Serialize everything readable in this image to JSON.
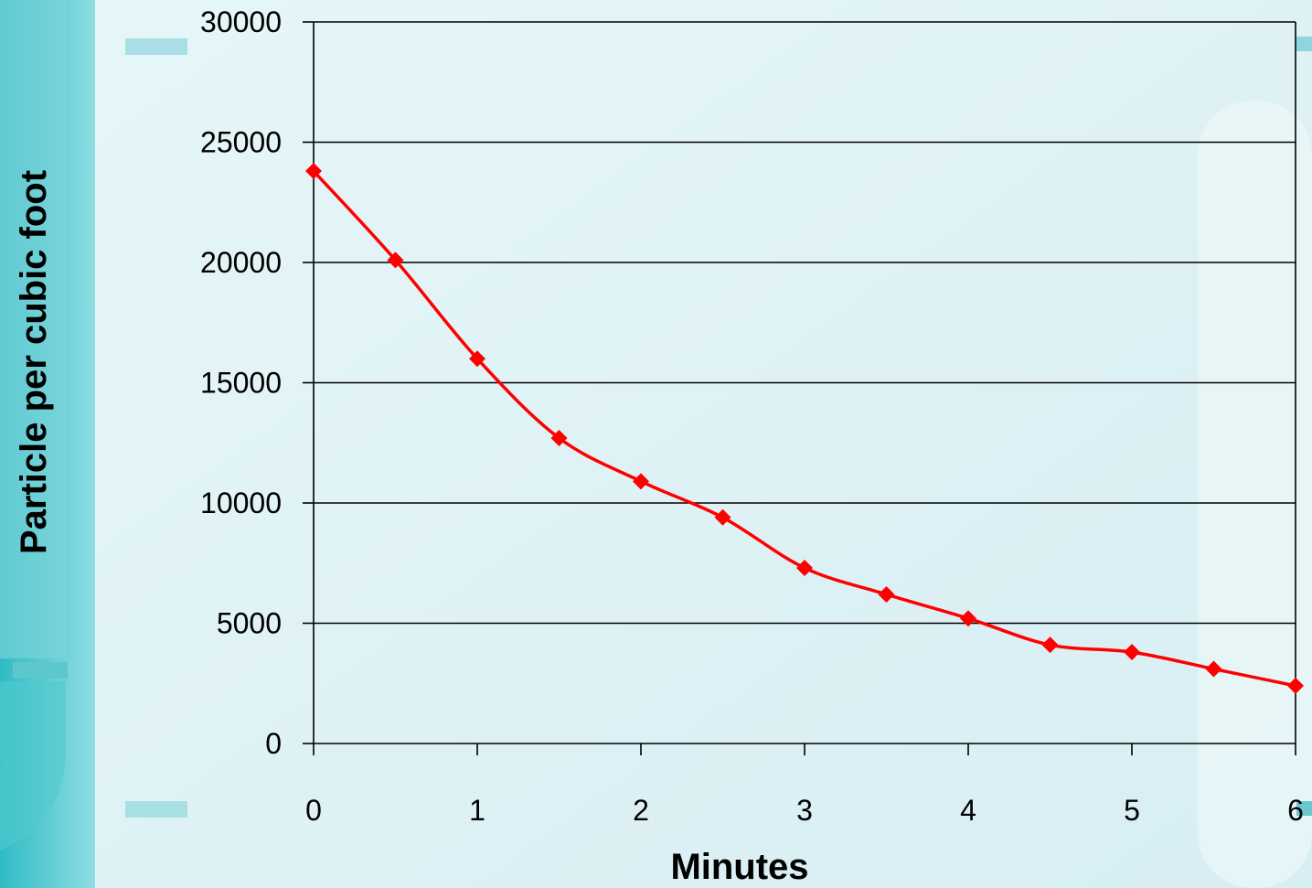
{
  "colors": {
    "series": "#ff0000",
    "gridline": "#000000",
    "plot_background": "#e4f4f7",
    "teal_accent": "#3ec6cc"
  },
  "chart_data": {
    "type": "line",
    "title": "",
    "xlabel": "Minutes",
    "ylabel": "Particle per cubic foot",
    "xlim": [
      0,
      6
    ],
    "ylim": [
      0,
      30000
    ],
    "x_ticks": [
      0,
      1,
      2,
      3,
      4,
      5,
      6
    ],
    "y_ticks": [
      0,
      5000,
      10000,
      15000,
      20000,
      25000,
      30000
    ],
    "grid": "horizontal",
    "legend": "none",
    "marker": "diamond",
    "smoothed": true,
    "series": [
      {
        "x": [
          0,
          0.5,
          1,
          1.5,
          2,
          2.5,
          3,
          3.5,
          4,
          4.5,
          5,
          5.5,
          6
        ],
        "values": [
          23800,
          20100,
          16000,
          12700,
          10900,
          9400,
          7300,
          6200,
          5200,
          4100,
          3800,
          3100,
          2400
        ]
      }
    ]
  }
}
